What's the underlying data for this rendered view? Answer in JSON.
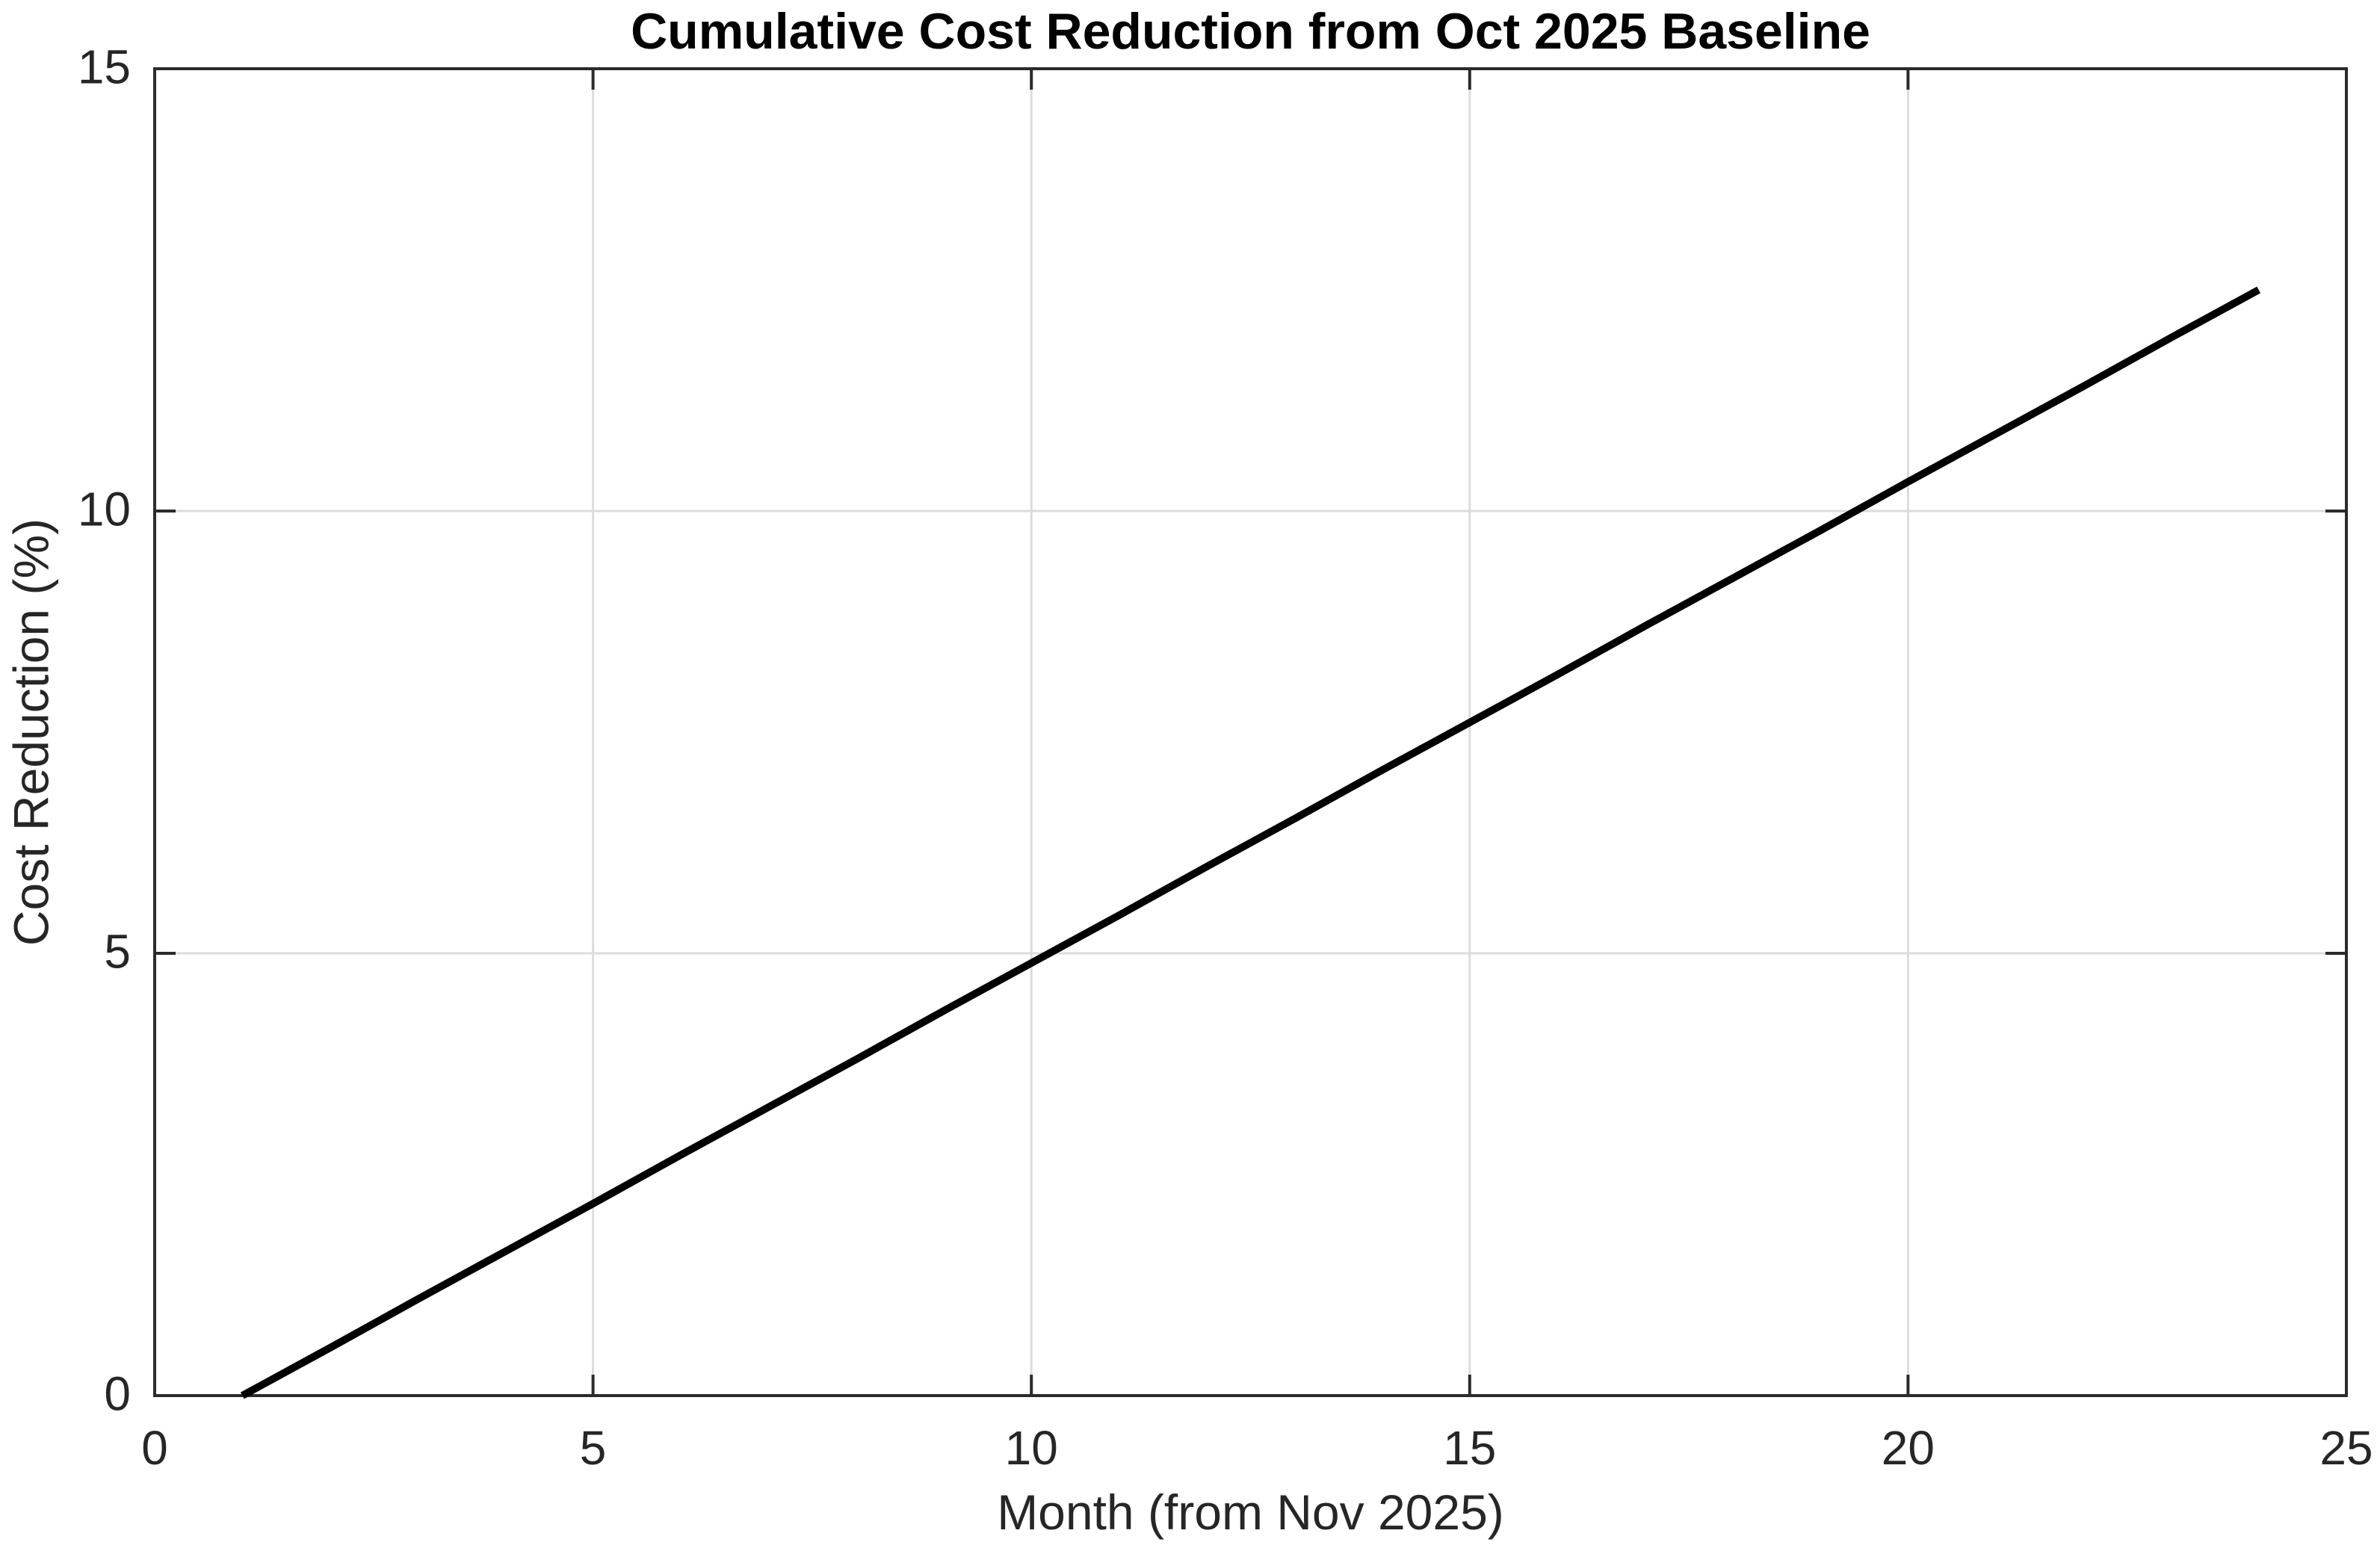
{
  "chart_data": {
    "type": "line",
    "title": "Cumulative Cost Reduction from Oct 2025 Baseline",
    "xlabel": "Month (from Nov 2025)",
    "ylabel": "Cost Reduction (%)",
    "xlim": [
      0,
      25
    ],
    "ylim": [
      0,
      15
    ],
    "xticks": [
      0,
      5,
      10,
      15,
      20,
      25
    ],
    "yticks": [
      0,
      5,
      10,
      15
    ],
    "xtick_labels": [
      "0",
      "5",
      "10",
      "15",
      "20",
      "25"
    ],
    "ytick_labels": [
      "0",
      "5",
      "10",
      "15"
    ],
    "grid": true,
    "legend": false,
    "colors": {
      "line": "#000000",
      "axis": "#2b2b2b",
      "grid": "#dcdcdc",
      "title": "#000000",
      "tick_text": "#262626",
      "background": "#ffffff"
    },
    "series": [
      {
        "name": "Cumulative cost reduction",
        "x": [
          1,
          2,
          3,
          4,
          5,
          6,
          7,
          8,
          9,
          10,
          11,
          12,
          13,
          14,
          15,
          16,
          17,
          18,
          19,
          20,
          21,
          22,
          23,
          24
        ],
        "y": [
          0,
          0.54,
          1.09,
          1.63,
          2.17,
          2.72,
          3.26,
          3.8,
          4.35,
          4.89,
          5.43,
          5.98,
          6.52,
          7.07,
          7.61,
          8.15,
          8.7,
          9.24,
          9.78,
          10.33,
          10.87,
          11.41,
          11.96,
          12.5
        ]
      }
    ]
  }
}
